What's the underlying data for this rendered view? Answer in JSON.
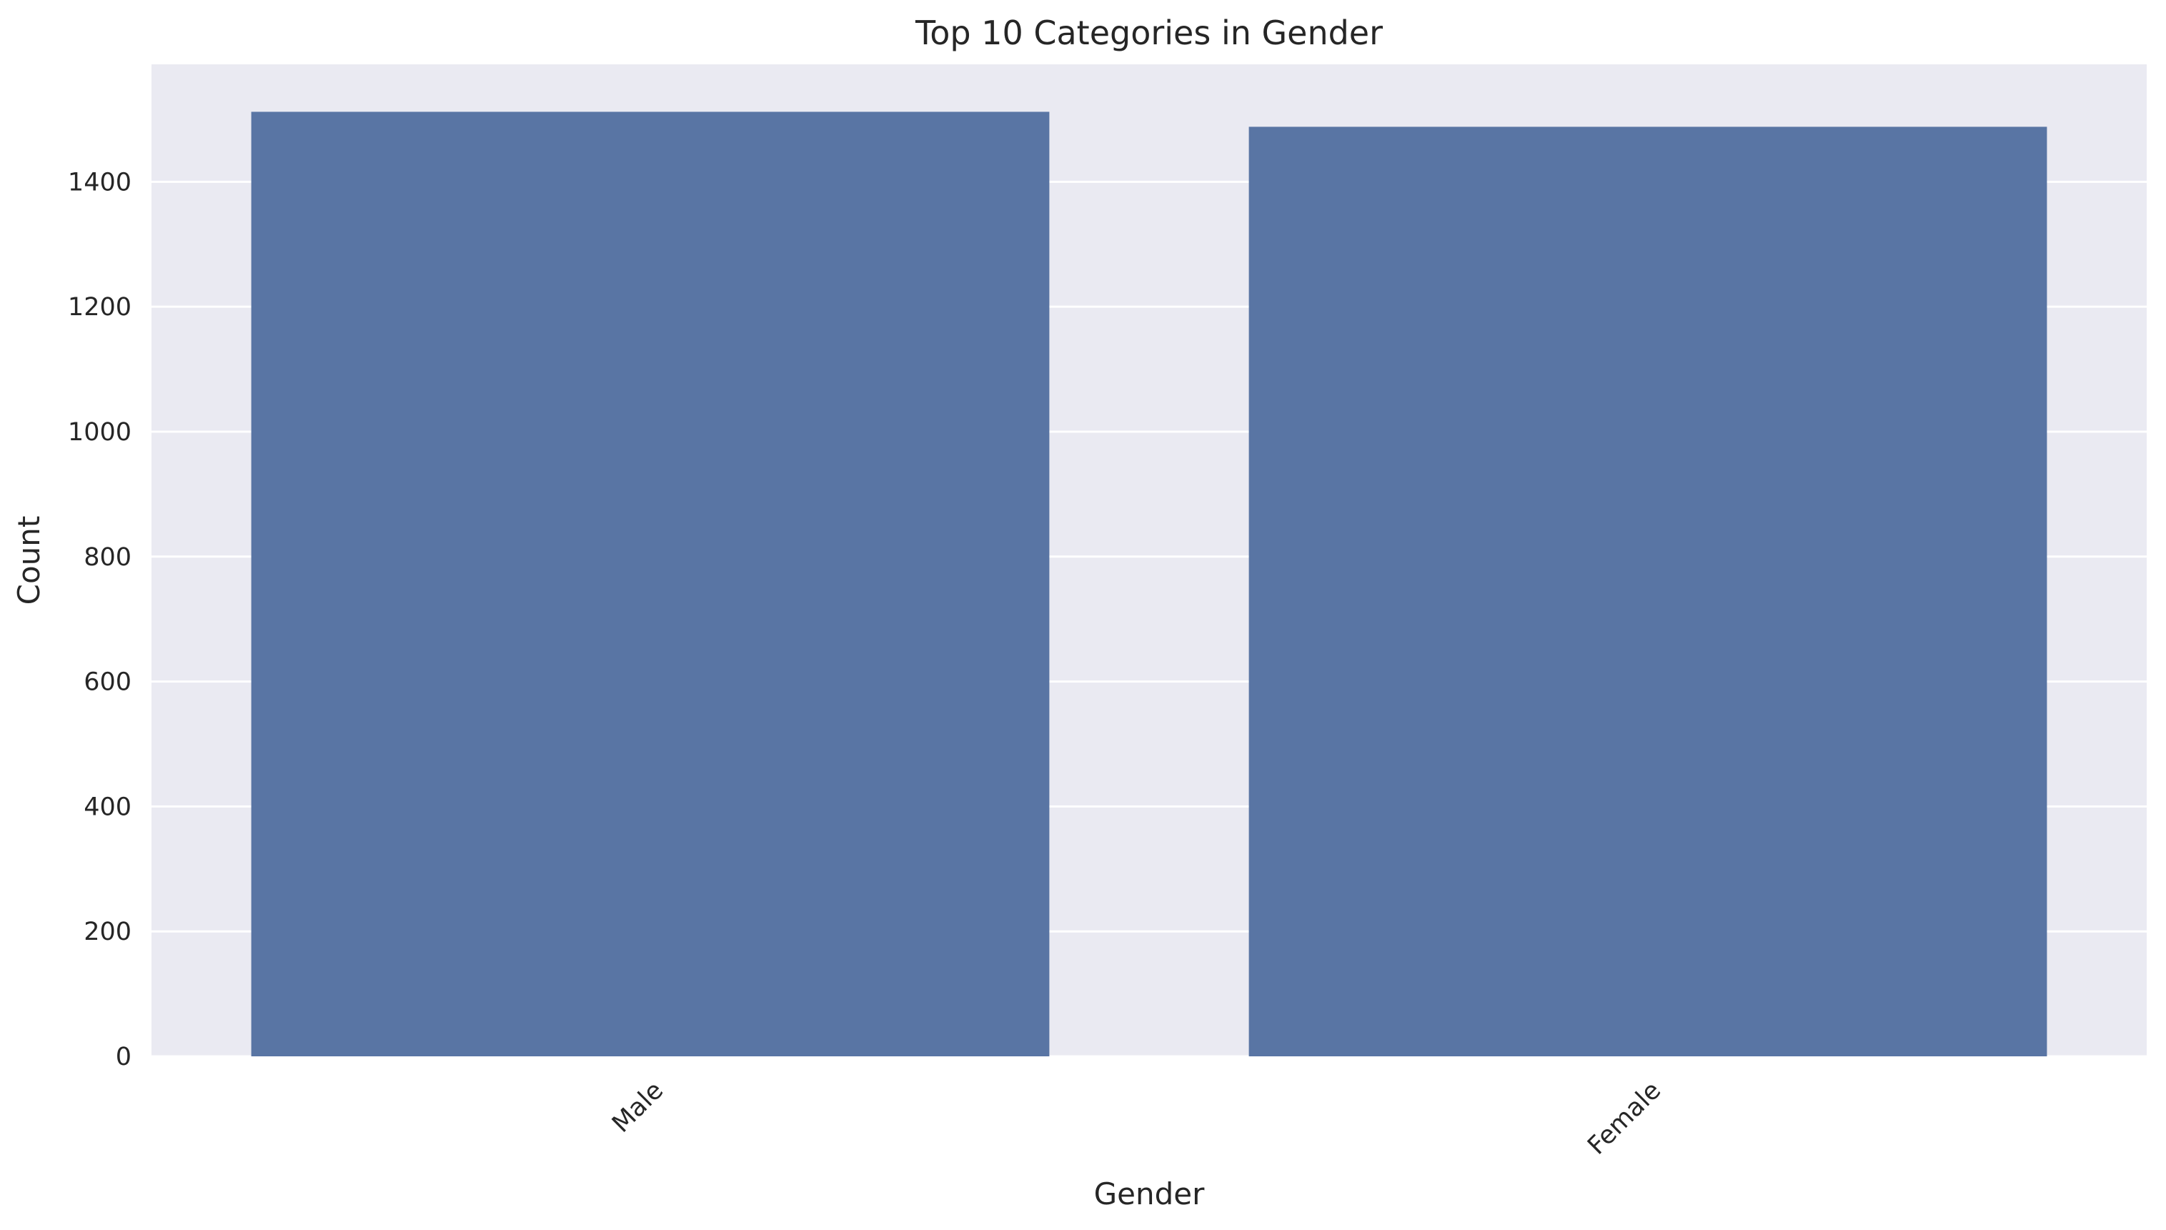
{
  "chart_data": {
    "type": "bar",
    "title": "Top 10 Categories in Gender",
    "xlabel": "Gender",
    "ylabel": "Count",
    "categories": [
      "Male",
      "Female"
    ],
    "values": [
      1512,
      1488
    ],
    "ylim": [
      0,
      1588
    ],
    "yticks": [
      0,
      200,
      400,
      600,
      800,
      1000,
      1200,
      1400
    ],
    "ytick_labels": [
      "0",
      "200",
      "400",
      "600",
      "800",
      "1000",
      "1200",
      "1400"
    ],
    "xtick_rotation": "45 degrees",
    "grid": "horizontal, white",
    "legend": "none",
    "colors": {
      "bar": "#5975a4",
      "plot_background": "#eaeaf2",
      "grid": "#ffffff",
      "text": "#262626"
    }
  }
}
